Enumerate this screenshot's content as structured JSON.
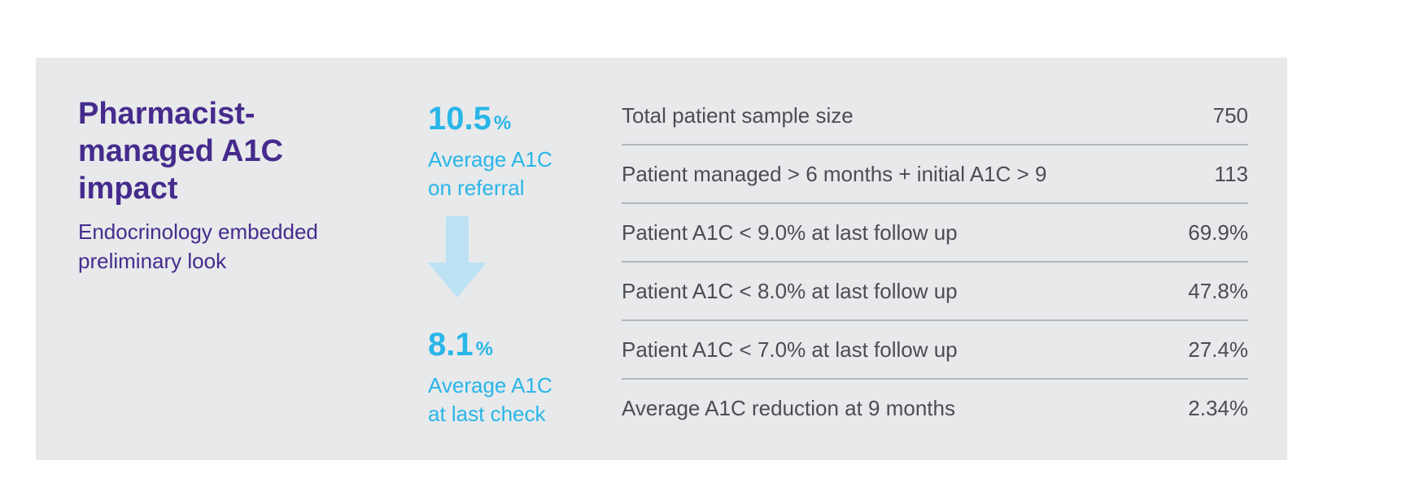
{
  "heading": "Pharmacist-managed A1C impact",
  "subheading": "Endocrinology embedded preliminary look",
  "colors": {
    "card_background": "#e8e9eb",
    "heading": "#452b8c",
    "accent": "#29b6e8",
    "arrow": "#bde2f4",
    "text": "#4b4d52",
    "divider": "#b3b6bb"
  },
  "stats": {
    "referral": {
      "value": "10.5",
      "unit": "%",
      "label_line1": "Average A1C",
      "label_line2": "on referral"
    },
    "last_check": {
      "value": "8.1",
      "unit": "%",
      "label_line1": "Average A1C",
      "label_line2": "at last check"
    },
    "arrow_icon": "arrow-down-icon"
  },
  "metrics": [
    {
      "label": "Total patient sample size",
      "value": "750"
    },
    {
      "label": "Patient managed > 6 months + initial A1C > 9",
      "value": "113"
    },
    {
      "label": "Patient A1C < 9.0% at last follow up",
      "value": "69.9%"
    },
    {
      "label": "Patient A1C < 8.0% at last follow up",
      "value": "47.8%"
    },
    {
      "label": "Patient A1C < 7.0% at last follow up",
      "value": "27.4%"
    },
    {
      "label": "Average A1C reduction at 9 months",
      "value": "2.34%"
    }
  ]
}
